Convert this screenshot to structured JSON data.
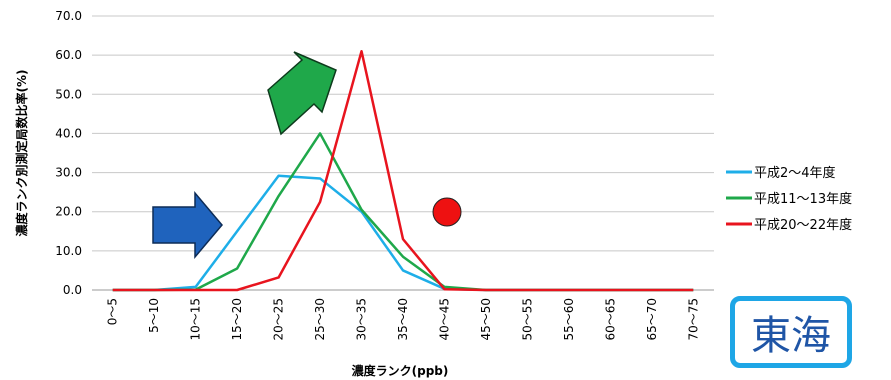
{
  "chart_data": {
    "type": "line",
    "title": "",
    "xlabel": "濃度ランク(ppb)",
    "ylabel": "濃度ランク別測定局数比率(%)",
    "ylim": [
      0,
      70
    ],
    "yticks": [
      "0.0",
      "10.0",
      "20.0",
      "30.0",
      "40.0",
      "50.0",
      "60.0",
      "70.0"
    ],
    "grid": "horizontal",
    "legend_position": "right",
    "categories": [
      "0～5",
      "5～10",
      "10～15",
      "15～20",
      "20～25",
      "25～30",
      "30～35",
      "35～40",
      "40～45",
      "45～50",
      "50～55",
      "55～60",
      "60～65",
      "65～70",
      "70～75"
    ],
    "series": [
      {
        "name": "平成2～4年度",
        "color": "#1eaee8",
        "values": [
          0,
          0,
          0.8,
          15.0,
          29.2,
          28.5,
          20.0,
          5.0,
          0.3,
          0,
          0,
          0,
          0,
          0,
          0
        ]
      },
      {
        "name": "平成11～13年度",
        "color": "#1fa84a",
        "values": [
          0,
          0,
          0.1,
          5.5,
          24.0,
          40.0,
          20.5,
          8.5,
          0.8,
          0,
          0,
          0,
          0,
          0,
          0
        ]
      },
      {
        "name": "平成20～22年度",
        "color": "#e8141e",
        "values": [
          0,
          0,
          0,
          0,
          3.2,
          22.5,
          61.0,
          13.0,
          0.2,
          0,
          0,
          0,
          0,
          0,
          0
        ]
      }
    ]
  },
  "region_label": "東海"
}
